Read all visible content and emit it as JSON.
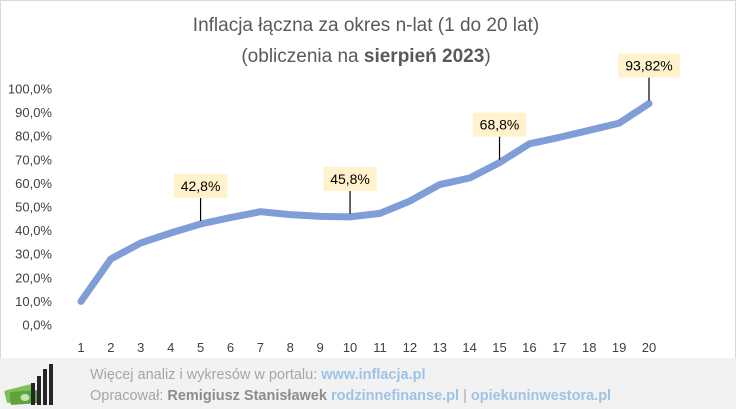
{
  "chart_data": {
    "type": "line",
    "title_line1": "Inflacja łączna za okres n-lat (1 do 20 lat)",
    "title_line2_prefix": "(obliczenia  na ",
    "title_line2_bold": "sierpień 2023",
    "title_line2_suffix": ")",
    "x": [
      1,
      2,
      3,
      4,
      5,
      6,
      7,
      8,
      9,
      10,
      11,
      12,
      13,
      14,
      15,
      16,
      17,
      18,
      19,
      20
    ],
    "x_tick_labels": [
      "1",
      "2",
      "3",
      "4",
      "5",
      "6",
      "7",
      "8",
      "9",
      "10",
      "11",
      "12",
      "13",
      "14",
      "15",
      "16",
      "17",
      "18",
      "19",
      "20"
    ],
    "values": [
      10.0,
      28.0,
      34.8,
      39.0,
      42.8,
      45.5,
      48.0,
      46.8,
      46.0,
      45.8,
      47.3,
      52.5,
      59.5,
      62.3,
      68.8,
      76.8,
      79.5,
      82.5,
      85.5,
      93.82
    ],
    "ylim": [
      0,
      100
    ],
    "y_ticks": [
      0,
      10,
      20,
      30,
      40,
      50,
      60,
      70,
      80,
      90,
      100
    ],
    "y_tick_labels": [
      "0,0%",
      "10,0%",
      "20,0%",
      "30,0%",
      "40,0%",
      "50,0%",
      "60,0%",
      "70,0%",
      "80,0%",
      "90,0%",
      "100,0%"
    ],
    "grid": false,
    "line_color": "#7f9ed8",
    "callouts": [
      {
        "x": 5,
        "label": "42,8%"
      },
      {
        "x": 10,
        "label": "45,8%"
      },
      {
        "x": 15,
        "label": "68,8%"
      },
      {
        "x": 20,
        "label": "93,82%"
      }
    ],
    "callout_fill": "#fff2cc"
  },
  "footer": {
    "line1_text": "Więcej analiz i wykresów w portalu: ",
    "line1_link": "www.inflacja.pl",
    "line2_text": "Opracował: ",
    "line2_author": "Remigiusz Stanisławek",
    "line2_link1": "rodzinnefinanse.pl",
    "line2_separator": " | ",
    "line2_link2": "opiekuninwestora.pl"
  }
}
